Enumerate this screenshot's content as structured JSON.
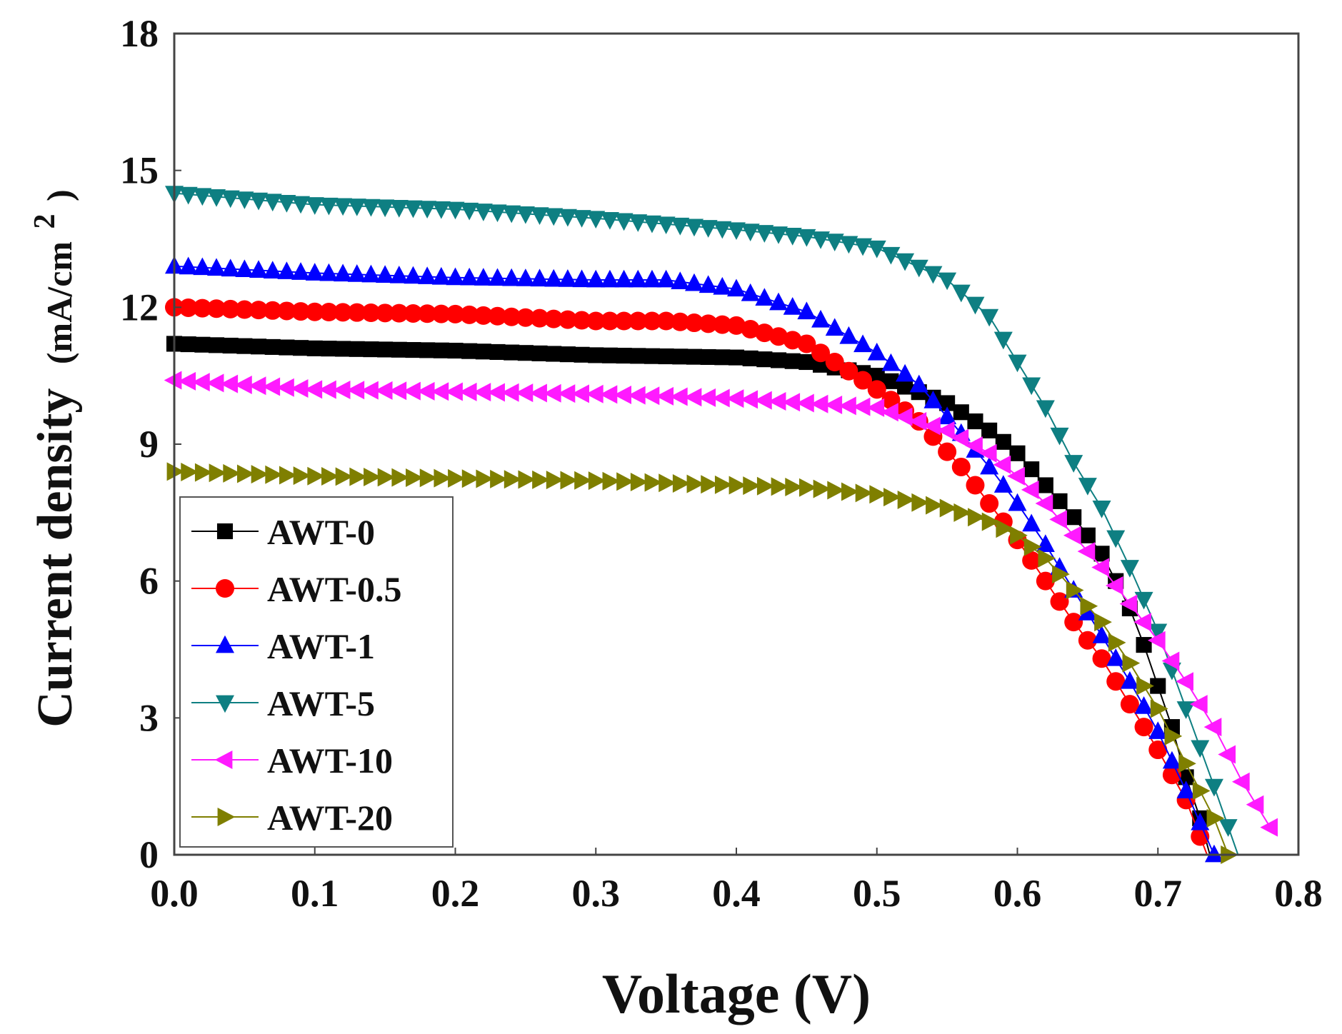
{
  "chart_data": {
    "type": "scatter",
    "title": "",
    "xlabel": "Voltage (V)",
    "ylabel": "Current density",
    "ylabel_unit": "(mA/cm",
    "ylabel_sup": "2",
    "ylabel_close": ")",
    "xlim": [
      0.0,
      0.8
    ],
    "ylim": [
      0,
      18
    ],
    "x_ticks": [
      "0.0",
      "0.1",
      "0.2",
      "0.3",
      "0.4",
      "0.5",
      "0.6",
      "0.7",
      "0.8"
    ],
    "y_ticks": [
      "0",
      "3",
      "6",
      "9",
      "12",
      "15",
      "18"
    ],
    "grid": false,
    "legend_position": "bottom-left",
    "series": [
      {
        "name": "AWT-0",
        "color": "#000000",
        "marker": "square",
        "points": [
          [
            0.0,
            11.2
          ],
          [
            0.1,
            11.1
          ],
          [
            0.2,
            11.05
          ],
          [
            0.3,
            10.95
          ],
          [
            0.4,
            10.9
          ],
          [
            0.45,
            10.8
          ],
          [
            0.5,
            10.5
          ],
          [
            0.55,
            9.9
          ],
          [
            0.58,
            9.3
          ],
          [
            0.6,
            8.8
          ],
          [
            0.62,
            8.1
          ],
          [
            0.64,
            7.4
          ],
          [
            0.66,
            6.6
          ],
          [
            0.67,
            6.0
          ],
          [
            0.68,
            5.4
          ],
          [
            0.69,
            4.6
          ],
          [
            0.7,
            3.7
          ],
          [
            0.71,
            2.8
          ],
          [
            0.72,
            1.7
          ],
          [
            0.73,
            0.8
          ],
          [
            0.737,
            0.0
          ]
        ]
      },
      {
        "name": "AWT-0.5",
        "color": "#ff0000",
        "marker": "circle",
        "points": [
          [
            0.0,
            12.0
          ],
          [
            0.1,
            11.9
          ],
          [
            0.2,
            11.85
          ],
          [
            0.3,
            11.7
          ],
          [
            0.35,
            11.7
          ],
          [
            0.4,
            11.6
          ],
          [
            0.45,
            11.2
          ],
          [
            0.5,
            10.2
          ],
          [
            0.53,
            9.5
          ],
          [
            0.56,
            8.5
          ],
          [
            0.58,
            7.7
          ],
          [
            0.6,
            6.9
          ],
          [
            0.62,
            6.0
          ],
          [
            0.64,
            5.1
          ],
          [
            0.66,
            4.3
          ],
          [
            0.68,
            3.3
          ],
          [
            0.7,
            2.3
          ],
          [
            0.72,
            1.2
          ],
          [
            0.735,
            0.0
          ]
        ]
      },
      {
        "name": "AWT-1",
        "color": "#0000ff",
        "marker": "triangle-up",
        "points": [
          [
            0.0,
            12.9
          ],
          [
            0.1,
            12.75
          ],
          [
            0.2,
            12.65
          ],
          [
            0.3,
            12.6
          ],
          [
            0.35,
            12.6
          ],
          [
            0.4,
            12.4
          ],
          [
            0.45,
            11.9
          ],
          [
            0.5,
            11.0
          ],
          [
            0.53,
            10.3
          ],
          [
            0.55,
            9.6
          ],
          [
            0.58,
            8.5
          ],
          [
            0.6,
            7.7
          ],
          [
            0.62,
            6.8
          ],
          [
            0.64,
            5.8
          ],
          [
            0.66,
            4.8
          ],
          [
            0.68,
            3.8
          ],
          [
            0.7,
            2.7
          ],
          [
            0.72,
            1.4
          ],
          [
            0.74,
            0.0
          ]
        ]
      },
      {
        "name": "AWT-5",
        "color": "#0e7f82",
        "marker": "triangle-down",
        "points": [
          [
            0.0,
            14.5
          ],
          [
            0.1,
            14.25
          ],
          [
            0.2,
            14.15
          ],
          [
            0.3,
            13.95
          ],
          [
            0.4,
            13.7
          ],
          [
            0.45,
            13.55
          ],
          [
            0.5,
            13.3
          ],
          [
            0.55,
            12.6
          ],
          [
            0.58,
            11.8
          ],
          [
            0.6,
            10.8
          ],
          [
            0.62,
            9.8
          ],
          [
            0.64,
            8.6
          ],
          [
            0.66,
            7.6
          ],
          [
            0.68,
            6.3
          ],
          [
            0.7,
            4.9
          ],
          [
            0.72,
            3.2
          ],
          [
            0.74,
            1.5
          ],
          [
            0.757,
            0.0
          ]
        ]
      },
      {
        "name": "AWT-10",
        "color": "#ff1aff",
        "marker": "triangle-left",
        "points": [
          [
            0.0,
            10.4
          ],
          [
            0.1,
            10.2
          ],
          [
            0.2,
            10.15
          ],
          [
            0.3,
            10.1
          ],
          [
            0.4,
            10.0
          ],
          [
            0.45,
            9.9
          ],
          [
            0.5,
            9.8
          ],
          [
            0.55,
            9.3
          ],
          [
            0.58,
            8.8
          ],
          [
            0.6,
            8.3
          ],
          [
            0.62,
            7.7
          ],
          [
            0.64,
            7.0
          ],
          [
            0.66,
            6.3
          ],
          [
            0.68,
            5.5
          ],
          [
            0.7,
            4.7
          ],
          [
            0.72,
            3.8
          ],
          [
            0.74,
            2.8
          ],
          [
            0.76,
            1.6
          ],
          [
            0.78,
            0.6
          ]
        ]
      },
      {
        "name": "AWT-20",
        "color": "#7f7f00",
        "marker": "triangle-right",
        "points": [
          [
            0.0,
            8.4
          ],
          [
            0.1,
            8.3
          ],
          [
            0.2,
            8.25
          ],
          [
            0.3,
            8.2
          ],
          [
            0.4,
            8.1
          ],
          [
            0.45,
            8.05
          ],
          [
            0.5,
            7.9
          ],
          [
            0.55,
            7.6
          ],
          [
            0.58,
            7.3
          ],
          [
            0.6,
            7.0
          ],
          [
            0.62,
            6.5
          ],
          [
            0.64,
            5.8
          ],
          [
            0.66,
            5.1
          ],
          [
            0.68,
            4.2
          ],
          [
            0.7,
            3.2
          ],
          [
            0.72,
            2.0
          ],
          [
            0.74,
            0.8
          ],
          [
            0.75,
            0.0
          ]
        ]
      }
    ]
  }
}
